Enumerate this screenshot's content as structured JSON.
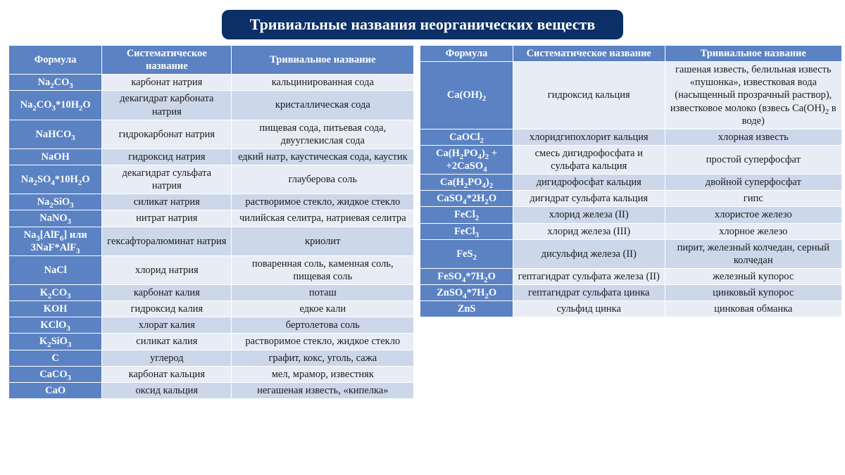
{
  "title": "Тривиальные названия неорганических веществ",
  "colors": {
    "title_bg": "#0b2f66",
    "header_bg": "#5b82c3",
    "formula_bg": "#5b82c3",
    "row_even": "#e8edf5",
    "row_odd": "#ccd7ea",
    "text": "#1a1a1a",
    "white": "#ffffff"
  },
  "headers": {
    "formula": "Формула",
    "systematic": "Систематическое название",
    "trivial": "Тривиальное название"
  },
  "left_widths": [
    "23%",
    "32%",
    "45%"
  ],
  "right_widths": [
    "22%",
    "36%",
    "42%"
  ],
  "left_rows": [
    {
      "formula": "Na<sub>2</sub>CO<sub>3</sub>",
      "systematic": "карбонат натрия",
      "trivial": "кальцинированная сода"
    },
    {
      "formula": "Na<sub>2</sub>CO<sub>3</sub>*10H<sub>2</sub>O",
      "systematic": "декагидрат карбоната натрия",
      "trivial": "кристаллическая сода"
    },
    {
      "formula": "NaHCO<sub>3</sub>",
      "systematic": "гидрокарбонат натрия",
      "trivial": "пищевая сода, питьевая сода, двууглекислая сода"
    },
    {
      "formula": "NaOH",
      "systematic": "гидроксид натрия",
      "trivial": "едкий натр, каустическая сода, каустик"
    },
    {
      "formula": "Na<sub>2</sub>SO<sub>4</sub>*10H<sub>2</sub>O",
      "systematic": "декагидрат сульфата натрия",
      "trivial": "глауберова соль"
    },
    {
      "formula": "Na<sub>2</sub>SiO<sub>3</sub>",
      "systematic": "силикат натрия",
      "trivial": "растворимое стекло, жидкое стекло"
    },
    {
      "formula": "NaNO<sub>3</sub>",
      "systematic": "нитрат натрия",
      "trivial": "чилийская селитра, натриевая селитра"
    },
    {
      "formula": "Na<sub>3</sub>[AlF<sub>6</sub>] или 3NaF*AlF<sub>3</sub>",
      "systematic": "гексафторалюминат натрия",
      "trivial": "криолит"
    },
    {
      "formula": "NaCl",
      "systematic": "хлорид натрия",
      "trivial": "поваренная соль, каменная соль, пищевая соль"
    },
    {
      "formula": "K<sub>2</sub>CO<sub>3</sub>",
      "systematic": "карбонат калия",
      "trivial": "поташ"
    },
    {
      "formula": "KOH",
      "systematic": "гидроксид калия",
      "trivial": "едкое кали"
    },
    {
      "formula": "KClO<sub>3</sub>",
      "systematic": "хлорат калия",
      "trivial": "бертолетова соль"
    },
    {
      "formula": "K<sub>2</sub>SiO<sub>3</sub>",
      "systematic": "силикат калия",
      "trivial": "растворимое стекло, жидкое стекло"
    },
    {
      "formula": "C",
      "systematic": "углерод",
      "trivial": "графит, кокс, уголь, сажа"
    },
    {
      "formula": "CaCO<sub>3</sub>",
      "systematic": "карбонат кальция",
      "trivial": "мел, мрамор, известняк"
    },
    {
      "formula": "CaO",
      "systematic": "оксид кальция",
      "trivial": "негашеная известь, «кипелка»"
    }
  ],
  "right_rows": [
    {
      "formula": "Ca(OH)<sub>2</sub>",
      "systematic": "гидроксид кальция",
      "trivial": "гашеная известь, белильная известь «пушонка», известковая вода (насыщенный прозрачный раствор), известковое молоко (взвесь Ca(OH)<sub>2</sub> в воде)"
    },
    {
      "formula": "CaOCl<sub>2</sub>",
      "systematic": "хлоридгипохлорит кальция",
      "trivial": "хлорная известь"
    },
    {
      "formula": "Ca(H<sub>2</sub>PO<sub>4</sub>)<sub>2</sub> + +2CaSO<sub>4</sub>",
      "systematic": "смесь дигидрофосфата и сульфата кальция",
      "trivial": "простой суперфосфат"
    },
    {
      "formula": "Ca(H<sub>2</sub>PO<sub>4</sub>)<sub>2</sub>",
      "systematic": "дигидрофосфат кальция",
      "trivial": "двойной суперфосфат"
    },
    {
      "formula": "CaSO<sub>4</sub>*2H<sub>2</sub>O",
      "systematic": "дигидрат сульфата кальция",
      "trivial": "гипс"
    },
    {
      "formula": "FeCl<sub>2</sub>",
      "systematic": "хлорид железа (II)",
      "trivial": "хлористое железо"
    },
    {
      "formula": "FeCl<sub>3</sub>",
      "systematic": "хлорид железа (III)",
      "trivial": "хлорное железо"
    },
    {
      "formula": "FeS<sub>2</sub>",
      "systematic": "дисульфид железа (II)",
      "trivial": "пирит, железный колчедан, серный колчедан"
    },
    {
      "formula": "FeSO<sub>4</sub>*7H<sub>2</sub>O",
      "systematic": "гептагидрат сульфата железа (II)",
      "trivial": "железный купорос"
    },
    {
      "formula": "ZnSO<sub>4</sub>*7H<sub>2</sub>O",
      "systematic": "гептагидрат сульфата цинка",
      "trivial": "цинковый купорос"
    },
    {
      "formula": "ZnS",
      "systematic": "сульфид цинка",
      "trivial": "цинковая обманка"
    }
  ]
}
